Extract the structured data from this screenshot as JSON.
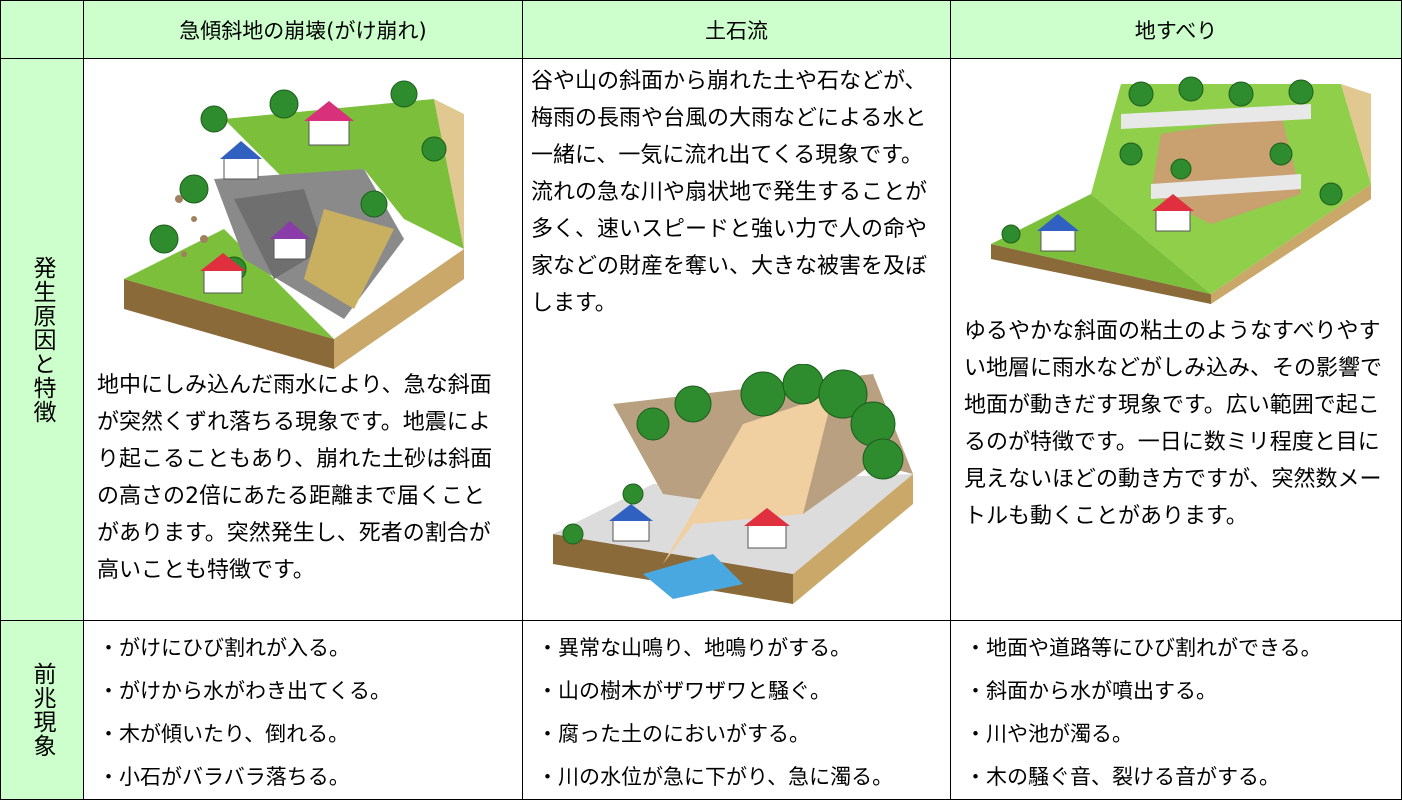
{
  "table": {
    "header": [
      "急傾斜地の崩壊(がけ崩れ)",
      "土石流",
      "地すべり"
    ],
    "rows": [
      {
        "label": "発生原因と特徴",
        "cells": [
          "地中にしみ込んだ雨水により、急な斜面が突然くずれ落ちる現象です。地震により起こることもあり、崩れた土砂は斜面の高さの2倍にあたる距離まで届くことがあります。突然発生し、死者の割合が高いことも特徴です。",
          "谷や山の斜面から崩れた土や石などが、梅雨の長雨や台風の大雨などによる水と一緒に、一気に流れ出てくる現象です。流れの急な川や扇状地で発生することが多く、速いスピードと強い力で人の命や家などの財産を奪い、大きな被害を及ぼします。",
          "ゆるやかな斜面の粘土のようなすべりやすい地層に雨水などがしみ込み、その影響で地面が動きだす現象です。広い範囲で起こるのが特徴です。一日に数ミリ程度と目に見えないほどの動き方ですが、突然数メートルも動くことがあります。"
        ]
      },
      {
        "label": "前兆現象",
        "cells": [
          [
            "・がけにひび割れが入る。",
            "・がけから水がわき出てくる。",
            "・木が傾いたり、倒れる。",
            "・小石がバラバラ落ちる。"
          ],
          [
            "・異常な山鳴り、地鳴りがする。",
            "・山の樹木がザワザワと騒ぐ。",
            "・腐った土のにおいがする。",
            "・川の水位が急に下がり、急に濁る。"
          ],
          [
            "・地面や道路等にひび割れができる。",
            "・斜面から水が噴出する。",
            "・川や池が濁る。",
            "・木の騒ぐ音、裂ける音がする。"
          ]
        ]
      }
    ]
  }
}
